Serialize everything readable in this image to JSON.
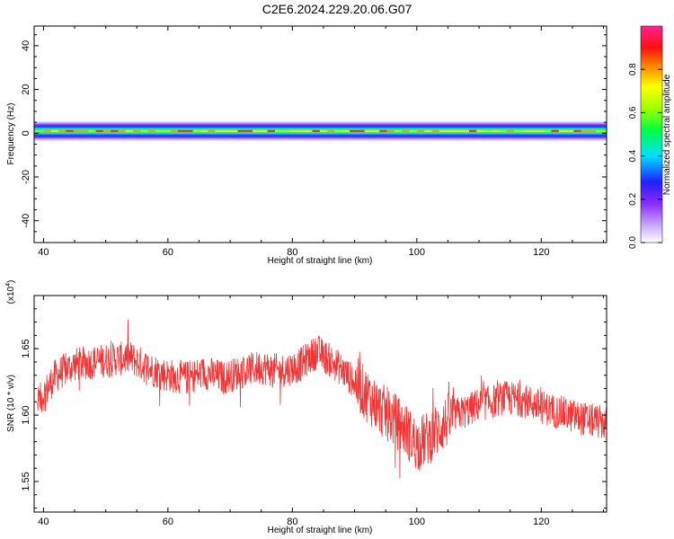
{
  "title": "C2E6.2024.229.20.06.G07",
  "colors": {
    "snr_line": "#ef3636",
    "axis": "#000000",
    "background": "#ffffff"
  },
  "chart_data": [
    {
      "type": "heatmap",
      "name": "spectrogram",
      "xlabel": "Height of straight line (km)",
      "ylabel": "Frequency (Hz)",
      "xlim": [
        38.5,
        130.5
      ],
      "ylim": [
        -50,
        49
      ],
      "xticks": [
        40,
        60,
        80,
        100,
        120
      ],
      "yticks": [
        -40,
        -20,
        0,
        20,
        40
      ],
      "colorbar": {
        "label": "Normalized spectral amplitude",
        "range": [
          0.0,
          1.0
        ],
        "ticks": [
          0.0,
          0.2,
          0.4,
          0.6,
          0.8
        ],
        "tick_labels": [
          "0.0",
          "0.2",
          "0.4",
          "0.6",
          "0.8"
        ],
        "colormap": "rainbow (white-violet-blue-cyan-green-yellow-red-magenta)"
      },
      "ridge": {
        "description": "narrow band of energy near 0 Hz across all heights",
        "center_freq_hz": 1,
        "half_width_hz": 2,
        "halo_half_width_hz": 5
      }
    },
    {
      "type": "line",
      "name": "snr",
      "xlabel": "Height of straight line (km)",
      "ylabel": "SNR (10 * v/v)",
      "y_multiplier": "(x10^4)",
      "xlim": [
        38.5,
        130.5
      ],
      "ylim": [
        1.527,
        1.69
      ],
      "xticks": [
        40,
        60,
        80,
        100,
        120
      ],
      "yticks": [
        1.55,
        1.6,
        1.65
      ],
      "ytick_labels": [
        "1.55",
        "1.60",
        "1.65"
      ],
      "series": [
        {
          "x": [
            39,
            42,
            45,
            48,
            51,
            54,
            57,
            60,
            63,
            66,
            69,
            72,
            75,
            78,
            81,
            84,
            87,
            90,
            92,
            94,
            96,
            98,
            100,
            102,
            104,
            106,
            108,
            110,
            112,
            114,
            116,
            118,
            120,
            123,
            126,
            129,
            130
          ],
          "values": [
            1.608,
            1.63,
            1.638,
            1.64,
            1.642,
            1.643,
            1.635,
            1.63,
            1.628,
            1.632,
            1.628,
            1.633,
            1.636,
            1.633,
            1.637,
            1.648,
            1.638,
            1.625,
            1.615,
            1.605,
            1.598,
            1.59,
            1.578,
            1.583,
            1.592,
            1.6,
            1.603,
            1.608,
            1.61,
            1.613,
            1.612,
            1.61,
            1.606,
            1.602,
            1.598,
            1.595,
            1.594
          ],
          "noise_amplitude": 0.013
        }
      ]
    }
  ]
}
